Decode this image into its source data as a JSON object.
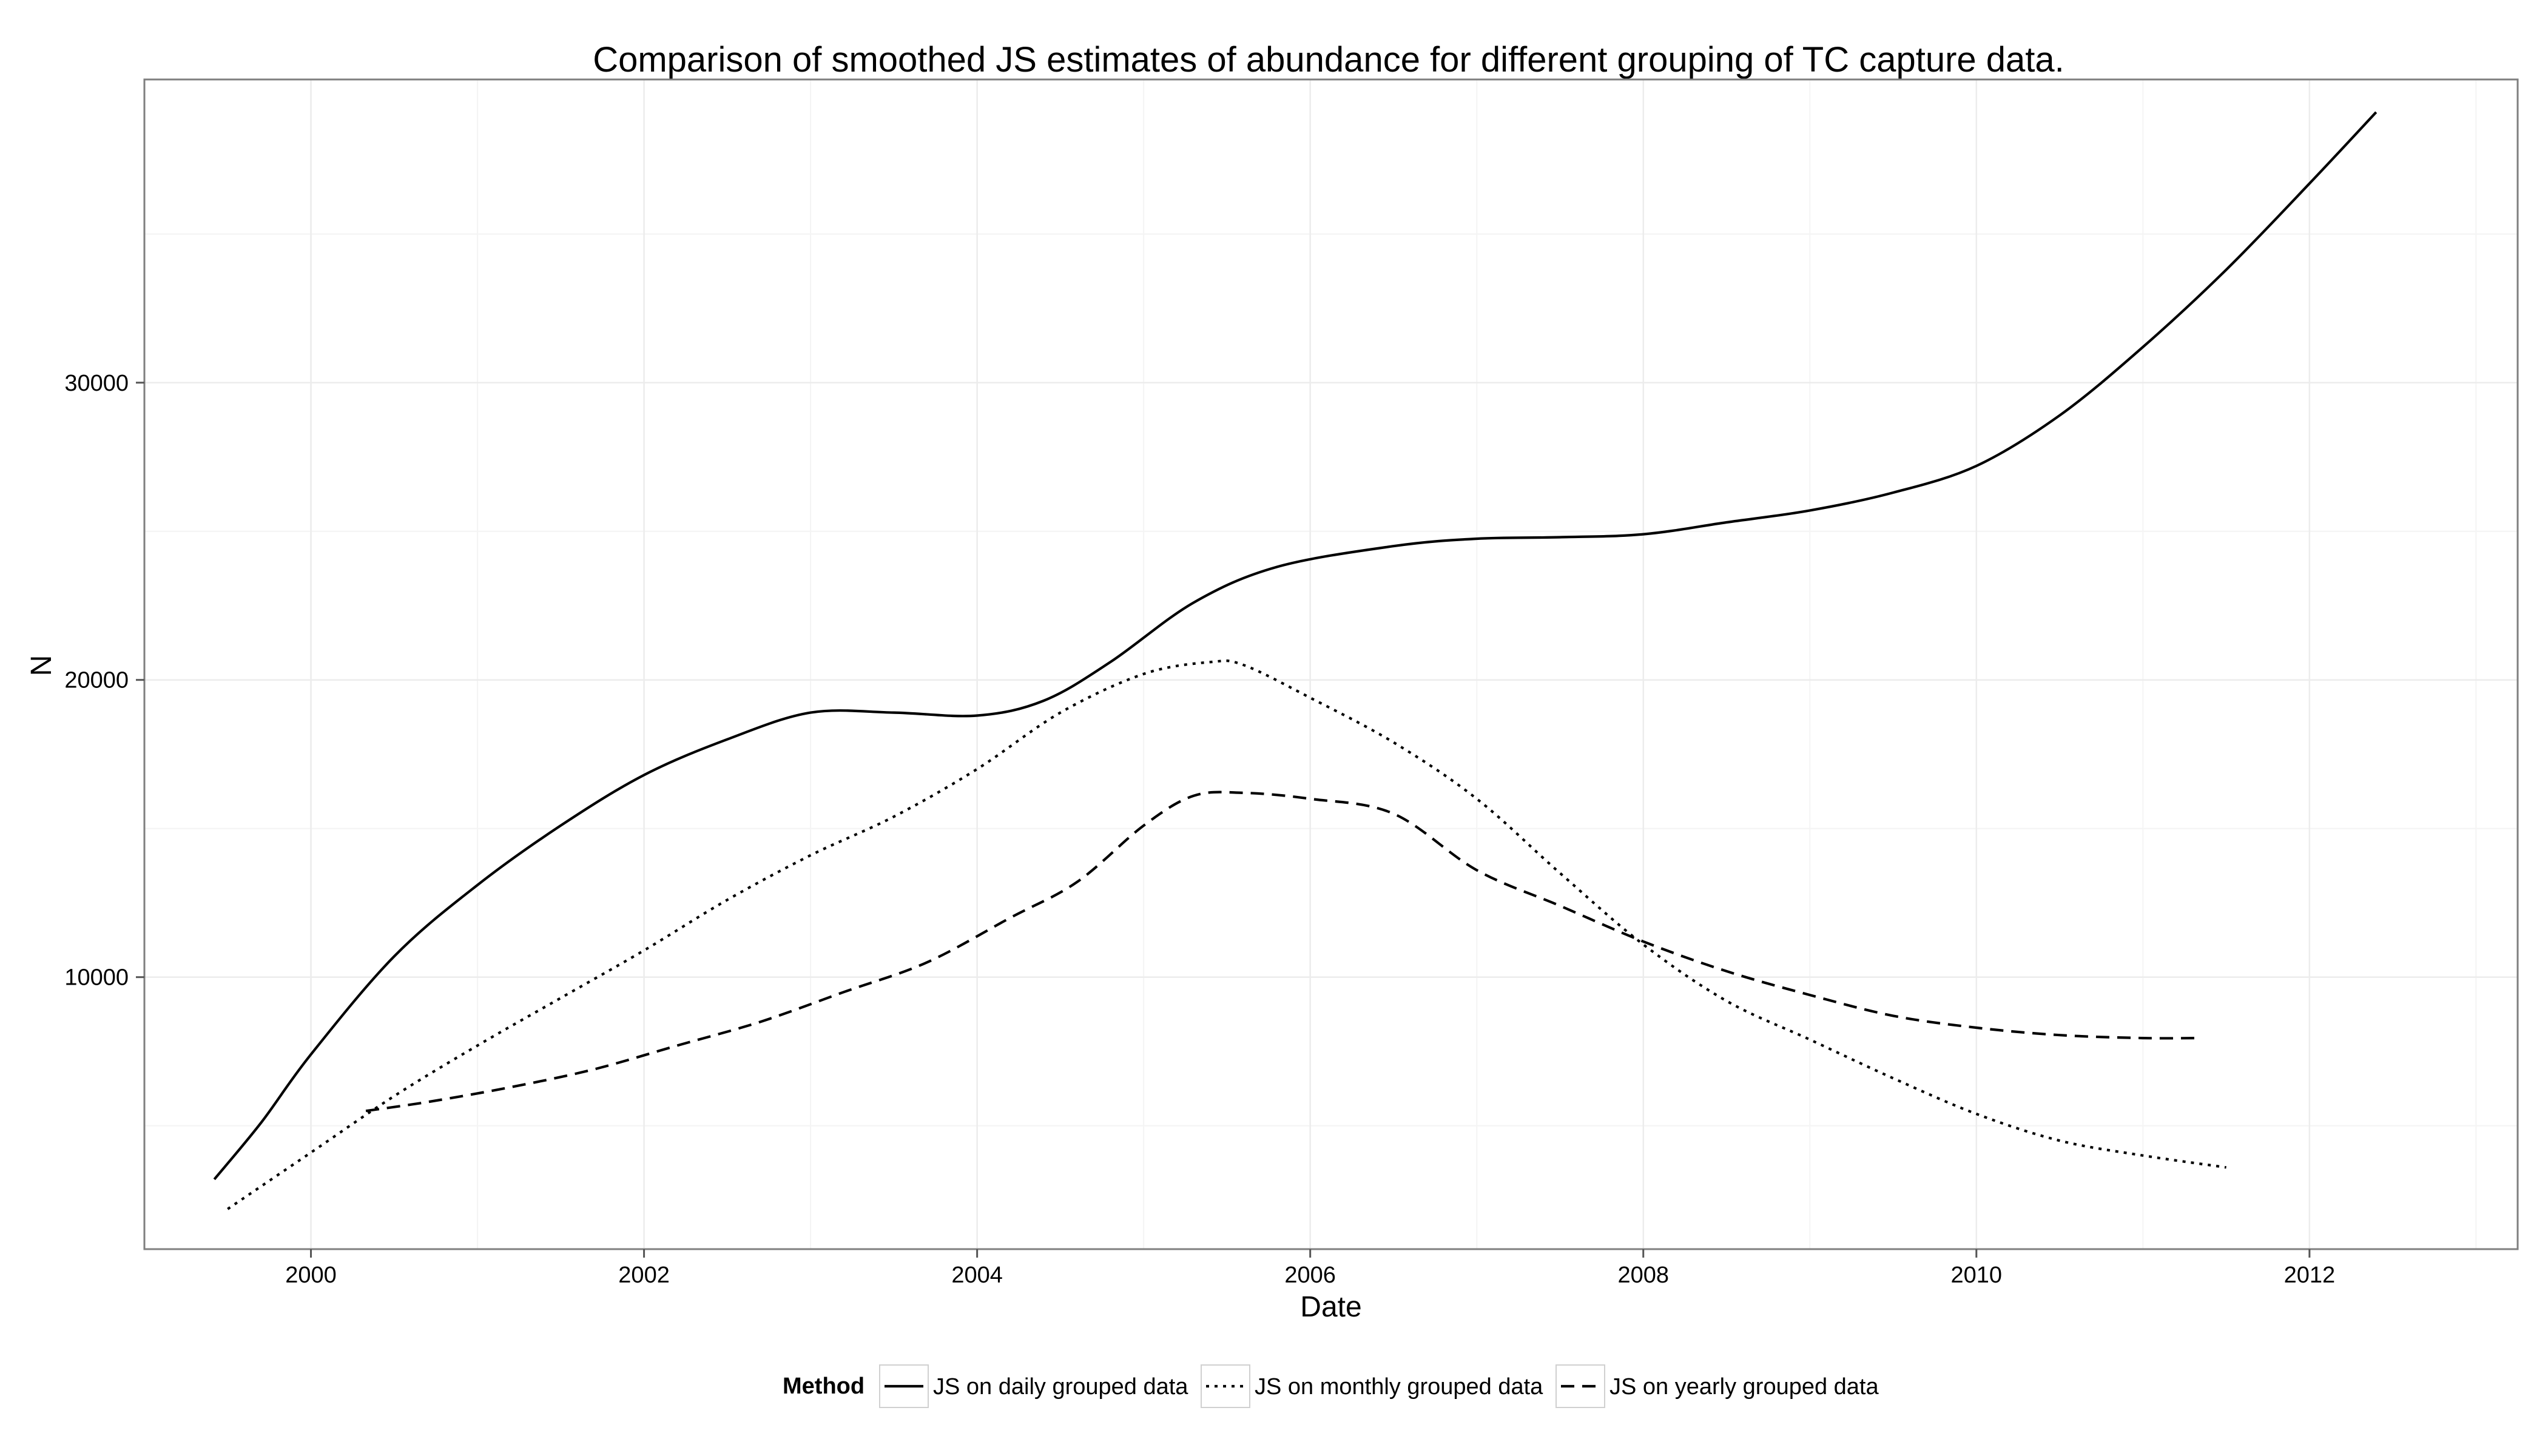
{
  "chart_data": {
    "type": "line",
    "title": "Comparison of smoothed JS estimates of abundance for different grouping of TC capture data.",
    "xlabel": "Date",
    "ylabel": "N",
    "x_ticks": [
      "2000",
      "2002",
      "2004",
      "2006",
      "2008",
      "2010",
      "2012"
    ],
    "y_ticks": [
      "10000",
      "20000",
      "30000"
    ],
    "xlim": [
      1999.0,
      2013.25
    ],
    "ylim": [
      850,
      40200
    ],
    "grid": true,
    "legend": {
      "title": "Method",
      "position": "bottom"
    },
    "series": [
      {
        "name": "JS on daily grouped data",
        "line_style": "solid",
        "points": [
          [
            1999.42,
            3200
          ],
          [
            1999.7,
            5100
          ],
          [
            2000.0,
            7400
          ],
          [
            2000.5,
            10700
          ],
          [
            2001.0,
            13100
          ],
          [
            2001.5,
            15100
          ],
          [
            2002.0,
            16800
          ],
          [
            2002.5,
            18000
          ],
          [
            2003.0,
            18900
          ],
          [
            2003.5,
            18900
          ],
          [
            2004.0,
            18800
          ],
          [
            2004.4,
            19300
          ],
          [
            2004.8,
            20600
          ],
          [
            2005.3,
            22600
          ],
          [
            2005.8,
            23800
          ],
          [
            2006.5,
            24500
          ],
          [
            2007.0,
            24750
          ],
          [
            2007.5,
            24800
          ],
          [
            2008.0,
            24900
          ],
          [
            2008.5,
            25300
          ],
          [
            2009.0,
            25700
          ],
          [
            2009.5,
            26300
          ],
          [
            2010.0,
            27200
          ],
          [
            2010.5,
            28900
          ],
          [
            2011.0,
            31200
          ],
          [
            2011.5,
            33800
          ],
          [
            2012.0,
            36700
          ],
          [
            2012.4,
            39100
          ]
        ]
      },
      {
        "name": "JS on monthly grouped data",
        "line_style": "dotted",
        "points": [
          [
            1999.5,
            2200
          ],
          [
            2000.0,
            4100
          ],
          [
            2000.5,
            6000
          ],
          [
            2001.0,
            7700
          ],
          [
            2001.5,
            9300
          ],
          [
            2002.0,
            10900
          ],
          [
            2002.5,
            12600
          ],
          [
            2003.0,
            14100
          ],
          [
            2003.5,
            15400
          ],
          [
            2004.0,
            17000
          ],
          [
            2004.5,
            18900
          ],
          [
            2005.0,
            20200
          ],
          [
            2005.4,
            20600
          ],
          [
            2005.6,
            20500
          ],
          [
            2006.0,
            19400
          ],
          [
            2006.5,
            17900
          ],
          [
            2007.0,
            16000
          ],
          [
            2007.5,
            13500
          ],
          [
            2008.0,
            11100
          ],
          [
            2008.5,
            9200
          ],
          [
            2009.0,
            7900
          ],
          [
            2009.5,
            6600
          ],
          [
            2010.0,
            5400
          ],
          [
            2010.5,
            4500
          ],
          [
            2011.0,
            4000
          ],
          [
            2011.5,
            3600
          ]
        ]
      },
      {
        "name": "JS on yearly grouped data",
        "line_style": "dashed",
        "points": [
          [
            2000.33,
            5500
          ],
          [
            2000.7,
            5800
          ],
          [
            2001.2,
            6300
          ],
          [
            2001.7,
            6900
          ],
          [
            2002.2,
            7700
          ],
          [
            2002.7,
            8500
          ],
          [
            2003.2,
            9500
          ],
          [
            2003.7,
            10500
          ],
          [
            2004.2,
            12000
          ],
          [
            2004.6,
            13200
          ],
          [
            2005.0,
            15100
          ],
          [
            2005.3,
            16100
          ],
          [
            2005.6,
            16200
          ],
          [
            2006.0,
            16000
          ],
          [
            2006.5,
            15500
          ],
          [
            2007.0,
            13600
          ],
          [
            2007.5,
            12400
          ],
          [
            2008.0,
            11200
          ],
          [
            2008.5,
            10200
          ],
          [
            2009.0,
            9400
          ],
          [
            2009.5,
            8700
          ],
          [
            2010.0,
            8300
          ],
          [
            2010.5,
            8050
          ],
          [
            2011.0,
            7950
          ],
          [
            2011.33,
            7950
          ]
        ]
      }
    ]
  }
}
